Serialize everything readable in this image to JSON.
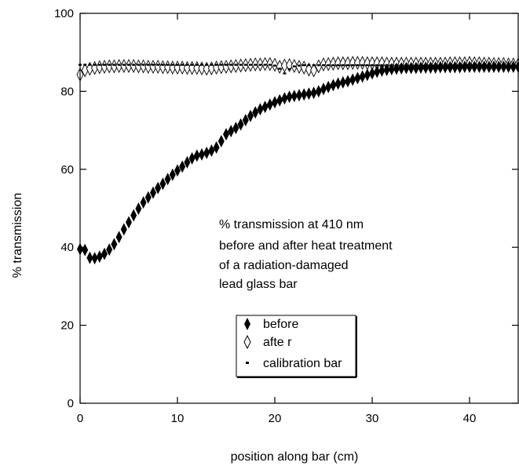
{
  "chart_data": {
    "type": "scatter",
    "xlabel": "position along bar (cm)",
    "ylabel": "% transmission",
    "xlim": [
      0,
      45
    ],
    "ylim": [
      0,
      100
    ],
    "xticks": [
      "0",
      "10",
      "20",
      "30",
      "40"
    ],
    "yticks": [
      "0",
      "20",
      "40",
      "60",
      "80",
      "100"
    ],
    "grid": false,
    "annotation": [
      "% transmission at 410 nm",
      "before and after heat treatment",
      "of a radiation-damaged",
      "lead glass bar"
    ],
    "legend_position": "bottom-center",
    "series": [
      {
        "name": "before",
        "marker": "filled-diamond",
        "x": [
          0,
          0.5,
          1,
          1.5,
          2,
          2.5,
          3,
          3.5,
          4,
          4.5,
          5,
          5.5,
          6,
          6.5,
          7,
          7.5,
          8,
          8.5,
          9,
          9.5,
          10,
          10.5,
          11,
          11.5,
          12,
          12.5,
          13,
          13.5,
          14,
          14.5,
          15,
          15.5,
          16,
          16.5,
          17,
          17.5,
          18,
          18.5,
          19,
          19.5,
          20,
          20.5,
          21,
          21.5,
          22,
          22.5,
          23,
          23.5,
          24,
          24.5,
          25,
          25.5,
          26,
          26.5,
          27,
          27.5,
          28,
          28.5,
          29,
          29.5,
          30,
          30.5,
          31,
          31.5,
          32,
          32.5,
          33,
          33.5,
          34,
          34.5,
          35,
          35.5,
          36,
          36.5,
          37,
          37.5,
          38,
          38.5,
          39,
          39.5,
          40,
          40.5,
          41,
          41.5,
          42,
          42.5,
          43,
          43.5,
          44,
          44.5,
          45
        ],
        "y": [
          39.5,
          39.3,
          37.3,
          37.2,
          37.6,
          38.3,
          39.4,
          40.8,
          42.6,
          44.6,
          46.4,
          48.2,
          49.9,
          51.5,
          52.8,
          54.0,
          55.2,
          56.3,
          57.5,
          58.6,
          59.7,
          60.7,
          61.8,
          62.8,
          63.5,
          63.8,
          64.2,
          64.8,
          65.6,
          67.2,
          69.0,
          69.8,
          70.6,
          71.5,
          72.6,
          73.7,
          74.6,
          75.4,
          76.0,
          76.6,
          77.2,
          77.7,
          78.2,
          78.6,
          78.8,
          79.0,
          79.2,
          79.4,
          79.6,
          80.0,
          80.6,
          81.1,
          81.6,
          82.0,
          82.3,
          82.6,
          83.0,
          83.4,
          83.8,
          84.2,
          84.6,
          85.0,
          85.3,
          85.5,
          85.7,
          85.8,
          85.9,
          86.0,
          86.0,
          86.0,
          86.1,
          86.1,
          86.1,
          86.1,
          86.2,
          86.2,
          86.2,
          86.2,
          86.2,
          86.3,
          86.3,
          86.3,
          86.3,
          86.3,
          86.3,
          86.3,
          86.3,
          86.3,
          86.3,
          86.3,
          86.3
        ]
      },
      {
        "name": "afte r",
        "marker": "open-diamond",
        "x": [
          0,
          0.5,
          1,
          1.5,
          2,
          2.5,
          3,
          3.5,
          4,
          4.5,
          5,
          5.5,
          6,
          6.5,
          7,
          7.5,
          8,
          8.5,
          9,
          9.5,
          10,
          10.5,
          11,
          11.5,
          12,
          12.5,
          13,
          13.5,
          14,
          14.5,
          15,
          15.5,
          16,
          16.5,
          17,
          17.5,
          18,
          18.5,
          19,
          19.5,
          20,
          20.5,
          21,
          21.5,
          22,
          22.5,
          23,
          23.5,
          24,
          24.5,
          25,
          25.5,
          26,
          26.5,
          27,
          27.5,
          28,
          28.5,
          29,
          29.5,
          30,
          30.5,
          31,
          31.5,
          32,
          32.5,
          33,
          33.5,
          34,
          34.5,
          35,
          35.5,
          36,
          36.5,
          37,
          37.5,
          38,
          38.5,
          39,
          39.5,
          40,
          40.5,
          41,
          41.5,
          42,
          42.5,
          43,
          43.5,
          44,
          44.5,
          45
        ],
        "y": [
          84.3,
          85.4,
          85.8,
          86.0,
          86.2,
          86.3,
          86.4,
          86.4,
          86.5,
          86.5,
          86.5,
          86.5,
          86.4,
          86.4,
          86.3,
          86.3,
          86.3,
          86.2,
          86.2,
          86.1,
          86.1,
          86.1,
          86.0,
          86.0,
          86.0,
          85.9,
          85.8,
          85.9,
          86.1,
          86.2,
          86.3,
          86.4,
          86.5,
          86.6,
          86.7,
          86.8,
          86.9,
          86.9,
          87.0,
          87.0,
          86.8,
          86.3,
          86.6,
          86.7,
          86.5,
          86.3,
          86.1,
          85.6,
          85.4,
          86.4,
          86.9,
          87.0,
          87.1,
          87.2,
          87.2,
          87.2,
          87.3,
          87.3,
          87.3,
          87.2,
          87.2,
          87.2,
          87.2,
          87.1,
          87.1,
          87.1,
          87.1,
          87.1,
          87.1,
          87.1,
          87.1,
          87.1,
          87.1,
          87.1,
          87.1,
          87.1,
          87.2,
          87.2,
          87.2,
          87.2,
          87.3,
          87.2,
          87.2,
          87.1,
          87.1,
          87.0,
          87.0,
          87.0,
          86.9,
          86.9,
          86.9
        ]
      },
      {
        "name": "calibration bar",
        "marker": "small-dash",
        "x": [
          0,
          0.5,
          1,
          1.5,
          2,
          2.5,
          3,
          3.5,
          4,
          4.5,
          5,
          5.5,
          6,
          6.5,
          7,
          7.5,
          8,
          8.5,
          9,
          9.5,
          10,
          10.5,
          11,
          11.5,
          12,
          12.5,
          13,
          13.5,
          14,
          14.5,
          15,
          15.5,
          16,
          16.5,
          17,
          17.5,
          18,
          18.5,
          19,
          19.5,
          20,
          20.5,
          21,
          21.5,
          22,
          22.5,
          23,
          23.5,
          24,
          24.5,
          25,
          25.5,
          26,
          26.5,
          27,
          27.5,
          28,
          28.5,
          29,
          29.5,
          30,
          30.5,
          31,
          31.5,
          32,
          32.5,
          33,
          33.5,
          34,
          34.5,
          35,
          35.5,
          36,
          36.5,
          37,
          37.5,
          38,
          38.5,
          39,
          39.5,
          40,
          40.5,
          41,
          41.5,
          42,
          42.5,
          43,
          43.5,
          44,
          44.5,
          45
        ],
        "y": [
          86.8,
          86.8,
          86.8,
          86.8,
          86.8,
          86.8,
          86.8,
          86.8,
          86.8,
          86.8,
          86.8,
          86.8,
          86.8,
          86.8,
          86.8,
          86.8,
          86.8,
          86.8,
          86.8,
          86.8,
          86.8,
          86.8,
          86.8,
          86.8,
          86.8,
          86.8,
          86.8,
          86.8,
          86.8,
          86.8,
          86.8,
          86.8,
          86.8,
          86.8,
          86.8,
          86.8,
          86.8,
          86.8,
          86.8,
          86.8,
          86.6,
          85.8,
          84.6,
          85.7,
          86.4,
          86.6,
          86.7,
          86.7,
          86.7,
          86.7,
          86.7,
          86.7,
          86.7,
          86.7,
          86.7,
          86.7,
          86.7,
          86.7,
          86.7,
          86.7,
          86.7,
          86.7,
          86.7,
          86.7,
          86.7,
          86.7,
          86.7,
          86.7,
          86.7,
          86.7,
          86.7,
          86.7,
          86.7,
          86.7,
          86.7,
          86.7,
          86.7,
          86.7,
          86.7,
          86.7,
          86.7,
          86.7,
          86.7,
          86.7,
          86.7,
          86.7,
          86.7,
          86.7,
          86.7,
          86.7,
          86.7
        ]
      }
    ]
  }
}
